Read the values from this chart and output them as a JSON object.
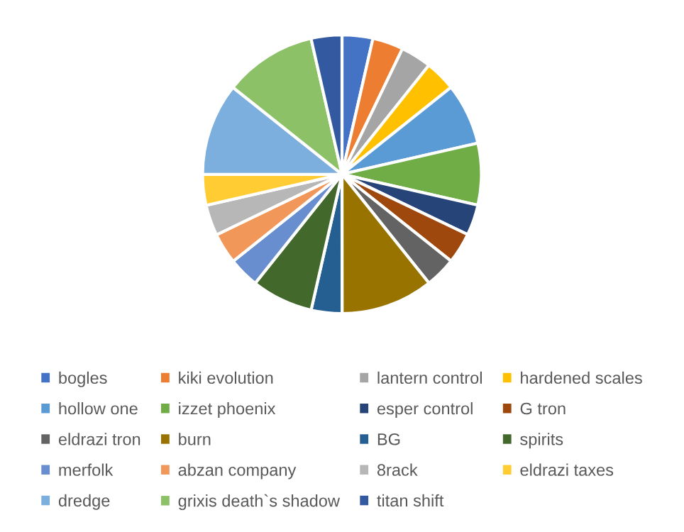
{
  "chart_data": {
    "type": "pie",
    "categories": [
      "bogles",
      "kiki evolution",
      "lantern control",
      "hardened scales",
      "hollow one",
      "izzet phoenix",
      "esper control",
      "G tron",
      "eldrazi tron",
      "burn",
      "BG",
      "spirits",
      "merfolk",
      "abzan company",
      "8rack",
      "eldrazi taxes",
      "dredge",
      "grixis death`s shadow",
      "titan shift"
    ],
    "values": [
      3.57,
      3.57,
      3.57,
      3.57,
      7.14,
      7.14,
      3.57,
      3.57,
      3.57,
      10.72,
      3.57,
      7.14,
      3.57,
      3.57,
      3.57,
      3.57,
      10.72,
      10.73,
      3.57
    ],
    "colors": [
      "#4472c4",
      "#ed7d31",
      "#a5a5a5",
      "#ffc000",
      "#5b9bd5",
      "#70ad47",
      "#264478",
      "#9e480e",
      "#636363",
      "#997300",
      "#255e91",
      "#43682b",
      "#698ed0",
      "#f1975a",
      "#b7b7b7",
      "#ffcd33",
      "#7cafdd",
      "#8cc168",
      "#335aa1"
    ],
    "legend": "bottom"
  }
}
